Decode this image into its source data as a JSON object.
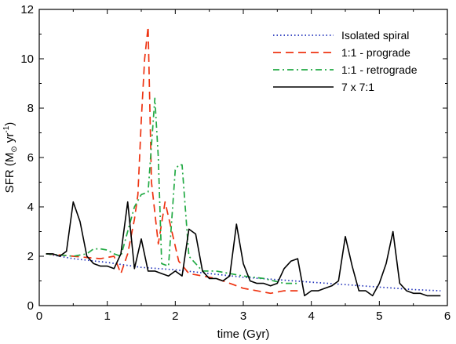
{
  "chart_data": {
    "type": "line",
    "xlabel": "time (Gyr)",
    "ylabel_parts": {
      "prefix": "SFR (M",
      "sub": "⊙",
      "mid": " yr",
      "sup": "-1",
      "suffix": ")"
    },
    "xlim": [
      0,
      6
    ],
    "ylim": [
      0,
      12
    ],
    "xticks": [
      0,
      1,
      2,
      3,
      4,
      5,
      6
    ],
    "yticks": [
      0,
      2,
      4,
      6,
      8,
      10,
      12
    ],
    "legend_position": "top-right",
    "grid": false,
    "series": [
      {
        "name": "Isolated spiral",
        "color": "#2233bb",
        "style": "dotted",
        "x": [
          0.1,
          0.5,
          1.0,
          1.5,
          2.0,
          2.5,
          3.0,
          3.5,
          4.0,
          4.5,
          5.0,
          5.5,
          5.9
        ],
        "y": [
          2.1,
          1.9,
          1.75,
          1.55,
          1.45,
          1.3,
          1.15,
          1.05,
          0.95,
          0.85,
          0.75,
          0.65,
          0.6
        ]
      },
      {
        "name": "1:1 - prograde",
        "color": "#ee3311",
        "style": "dashed",
        "x": [
          0.1,
          0.3,
          0.5,
          0.7,
          0.9,
          1.1,
          1.2,
          1.3,
          1.4,
          1.45,
          1.5,
          1.55,
          1.6,
          1.65,
          1.75,
          1.85,
          1.95,
          2.05,
          2.2,
          2.4,
          2.6,
          2.8,
          3.0,
          3.2,
          3.4,
          3.6,
          3.8
        ],
        "y": [
          2.1,
          2.05,
          2.0,
          1.95,
          1.9,
          2.0,
          1.3,
          2.1,
          3.5,
          4.5,
          7.5,
          10.0,
          11.3,
          5.0,
          2.5,
          4.2,
          3.0,
          1.8,
          1.3,
          1.2,
          1.1,
          0.9,
          0.7,
          0.6,
          0.5,
          0.6,
          0.6
        ]
      },
      {
        "name": "1:1 - retrograde",
        "color": "#22aa44",
        "style": "dashdot",
        "x": [
          0.1,
          0.3,
          0.5,
          0.7,
          0.8,
          0.9,
          1.0,
          1.1,
          1.2,
          1.4,
          1.5,
          1.6,
          1.7,
          1.75,
          1.8,
          1.9,
          2.0,
          2.05,
          2.1,
          2.2,
          2.4,
          2.6,
          2.8,
          3.0,
          3.3,
          3.6,
          3.8
        ],
        "y": [
          2.1,
          2.05,
          2.0,
          2.1,
          2.3,
          2.3,
          2.25,
          2.1,
          2.0,
          4.0,
          4.5,
          4.6,
          8.4,
          6.0,
          1.7,
          1.6,
          5.5,
          5.7,
          5.7,
          2.0,
          1.4,
          1.4,
          1.3,
          1.2,
          1.1,
          0.9,
          0.9
        ]
      },
      {
        "name": "7 x 7:1",
        "color": "#000000",
        "style": "solid",
        "x": [
          0.1,
          0.2,
          0.3,
          0.4,
          0.5,
          0.6,
          0.7,
          0.8,
          0.9,
          1.0,
          1.1,
          1.2,
          1.3,
          1.4,
          1.5,
          1.6,
          1.7,
          1.8,
          1.9,
          2.0,
          2.1,
          2.2,
          2.3,
          2.4,
          2.5,
          2.6,
          2.7,
          2.8,
          2.9,
          3.0,
          3.1,
          3.2,
          3.3,
          3.4,
          3.5,
          3.6,
          3.7,
          3.8,
          3.9,
          4.0,
          4.1,
          4.2,
          4.3,
          4.4,
          4.5,
          4.6,
          4.7,
          4.8,
          4.9,
          5.0,
          5.1,
          5.2,
          5.3,
          5.4,
          5.5,
          5.6,
          5.7,
          5.8,
          5.9
        ],
        "y": [
          2.1,
          2.1,
          2.0,
          2.2,
          4.2,
          3.4,
          2.0,
          1.7,
          1.6,
          1.6,
          1.5,
          2.1,
          4.2,
          1.5,
          2.7,
          1.4,
          1.4,
          1.3,
          1.2,
          1.4,
          1.2,
          3.1,
          2.9,
          1.4,
          1.1,
          1.1,
          1.0,
          1.2,
          3.3,
          1.7,
          1.0,
          0.9,
          0.9,
          0.8,
          0.9,
          1.5,
          1.8,
          1.9,
          0.4,
          0.6,
          0.6,
          0.7,
          0.8,
          1.0,
          2.8,
          1.6,
          0.6,
          0.6,
          0.4,
          0.9,
          1.7,
          3.0,
          0.9,
          0.6,
          0.5,
          0.5,
          0.4,
          0.4,
          0.4
        ]
      }
    ]
  }
}
